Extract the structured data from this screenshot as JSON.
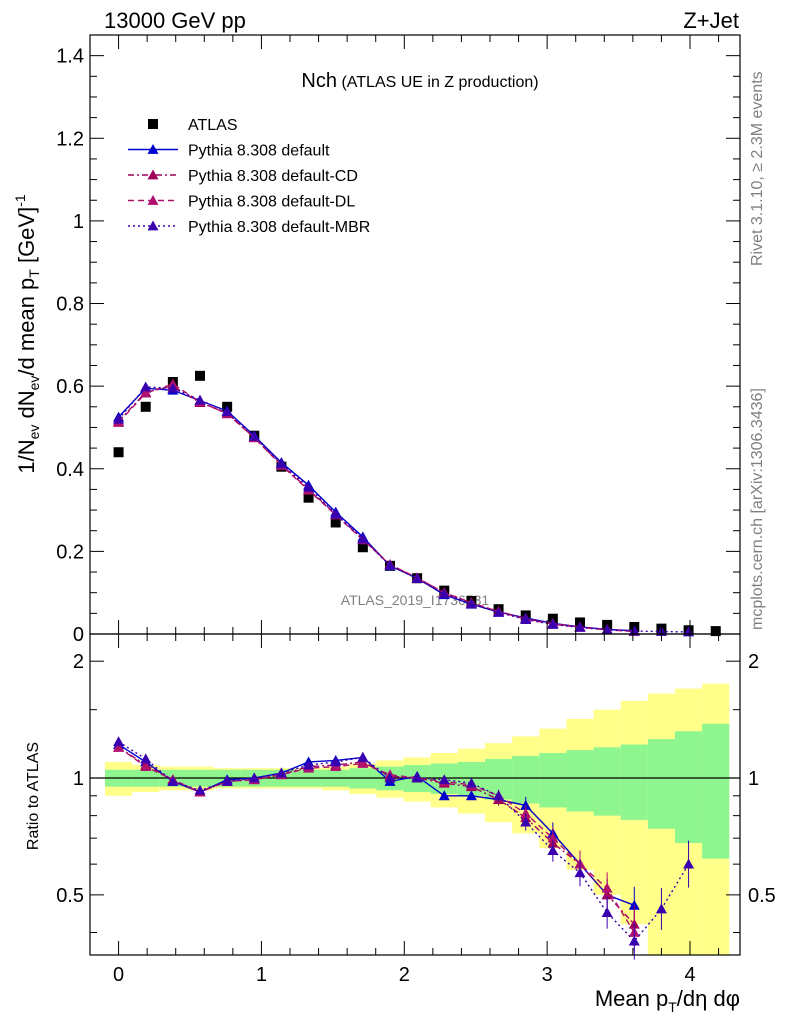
{
  "header": {
    "energy_label": "13000 GeV pp",
    "process_label": "Z+Jet"
  },
  "side_labels": {
    "rivet": "Rivet 3.1.10, ≥ 2.3M events",
    "mcplots": "mcplots.cern.ch [arXiv:1306.3436]"
  },
  "main_plot": {
    "title_main": "Nch",
    "title_sub": "(ATLAS UE in Z production)",
    "ylabel": "1/N_ev dN_ev/d mean p_T [GeV]^-1",
    "watermark": "ATLAS_2019_I1736531",
    "yticks": [
      "0",
      "0.2",
      "0.4",
      "0.6",
      "0.8",
      "1",
      "1.2",
      "1.4"
    ]
  },
  "ratio_plot": {
    "ylabel": "Ratio to ATLAS",
    "yticks": [
      "0.5",
      "1",
      "2"
    ]
  },
  "xaxis": {
    "xlabel": "Mean p_T/dη dφ",
    "xticks": [
      "0",
      "1",
      "2",
      "3",
      "4"
    ]
  },
  "legend": {
    "items": [
      {
        "label": "ATLAS",
        "marker": "square",
        "style": "none",
        "color": "#000000"
      },
      {
        "label": "Pythia 8.308 default",
        "marker": "triangle",
        "style": "solid",
        "color": "#0000cc"
      },
      {
        "label": "Pythia 8.308 default-CD",
        "marker": "triangle",
        "style": "dashdot",
        "color": "#a0005a"
      },
      {
        "label": "Pythia 8.308 default-DL",
        "marker": "triangle",
        "style": "dashed",
        "color": "#b0106e"
      },
      {
        "label": "Pythia 8.308 default-MBR",
        "marker": "triangle",
        "style": "dotted",
        "color": "#3a00b0"
      }
    ]
  },
  "chart_data": {
    "type": "scatter",
    "x": [
      0,
      0.19,
      0.38,
      0.57,
      0.76,
      0.95,
      1.14,
      1.33,
      1.52,
      1.71,
      1.9,
      2.09,
      2.28,
      2.47,
      2.66,
      2.85,
      3.04,
      3.23,
      3.42,
      3.61,
      3.8,
      3.99,
      4.18
    ],
    "xlim": [
      -0.2,
      4.35
    ],
    "main_ylim": [
      0,
      1.45
    ],
    "ratio_ylim": [
      0.35,
      2.35
    ],
    "ratio_scale": "log",
    "atlas": [
      0.44,
      0.55,
      0.61,
      0.625,
      0.55,
      0.48,
      0.405,
      0.33,
      0.27,
      0.21,
      0.165,
      0.135,
      0.105,
      0.08,
      0.06,
      0.045,
      0.037,
      0.028,
      0.022,
      0.017,
      0.013,
      0.009,
      0.007
    ],
    "series": [
      {
        "name": "Pythia 8.308 default",
        "main": [
          0.525,
          0.595,
          0.59,
          0.565,
          0.54,
          0.48,
          0.415,
          0.36,
          0.295,
          0.235,
          0.165,
          0.135,
          0.095,
          0.072,
          0.053,
          0.039,
          0.026,
          0.017,
          0.011,
          0.008
        ],
        "ratio": [
          1.22,
          1.1,
          0.98,
          0.92,
          0.99,
          1.0,
          1.03,
          1.1,
          1.11,
          1.13,
          0.98,
          1.01,
          0.9,
          0.9,
          0.88,
          0.85,
          0.72,
          0.6,
          0.5,
          0.47,
          null,
          null,
          null
        ]
      },
      {
        "name": "Pythia 8.308 default-CD",
        "main": [
          0.515,
          0.585,
          0.6,
          0.56,
          0.535,
          0.475,
          0.41,
          0.35,
          0.29,
          0.23,
          0.168,
          0.135,
          0.1,
          0.075,
          0.055,
          0.037,
          0.025,
          0.017,
          0.011,
          0.007
        ],
        "ratio": [
          1.2,
          1.08,
          0.99,
          0.92,
          0.98,
          0.99,
          1.02,
          1.07,
          1.08,
          1.1,
          1.01,
          1.0,
          0.97,
          0.95,
          0.88,
          0.79,
          0.68,
          0.6,
          0.5,
          0.42,
          null,
          null,
          null
        ]
      },
      {
        "name": "Pythia 8.308 default-DL",
        "main": [
          0.512,
          0.583,
          0.605,
          0.562,
          0.533,
          0.475,
          0.408,
          0.348,
          0.288,
          0.228,
          0.168,
          0.136,
          0.1,
          0.076,
          0.054,
          0.036,
          0.024,
          0.016,
          0.01,
          0.006
        ],
        "ratio": [
          1.2,
          1.07,
          0.99,
          0.92,
          0.98,
          0.99,
          1.02,
          1.06,
          1.07,
          1.09,
          1.02,
          1.0,
          0.98,
          0.96,
          0.9,
          0.81,
          0.7,
          0.6,
          0.52,
          0.4,
          null,
          null,
          null
        ]
      },
      {
        "name": "Pythia 8.308 default-MBR",
        "main": [
          0.52,
          0.598,
          0.595,
          0.566,
          0.538,
          0.478,
          0.412,
          0.355,
          0.29,
          0.23,
          0.166,
          0.134,
          0.097,
          0.073,
          0.052,
          0.035,
          0.023,
          0.016,
          0.01,
          0.007,
          0.006,
          0.005
        ],
        "ratio": [
          1.24,
          1.12,
          0.98,
          0.93,
          0.98,
          1.0,
          1.03,
          1.08,
          1.1,
          1.13,
          1.0,
          1.0,
          0.99,
          0.97,
          0.9,
          0.77,
          0.65,
          0.57,
          0.45,
          0.38,
          0.46,
          0.6,
          null
        ]
      }
    ],
    "band_inner": [
      0.05,
      0.05,
      0.05,
      0.05,
      0.05,
      0.05,
      0.05,
      0.05,
      0.05,
      0.06,
      0.07,
      0.08,
      0.09,
      0.1,
      0.12,
      0.14,
      0.16,
      0.18,
      0.2,
      0.22,
      0.26,
      0.32,
      0.38
    ],
    "band_outer": [
      0.1,
      0.08,
      0.07,
      0.07,
      0.06,
      0.06,
      0.06,
      0.06,
      0.07,
      0.09,
      0.11,
      0.13,
      0.16,
      0.19,
      0.23,
      0.28,
      0.34,
      0.42,
      0.5,
      0.58,
      0.65,
      0.7,
      0.75
    ],
    "band_colors": {
      "inner": "#8ff58f",
      "outer": "#ffff8a"
    }
  }
}
